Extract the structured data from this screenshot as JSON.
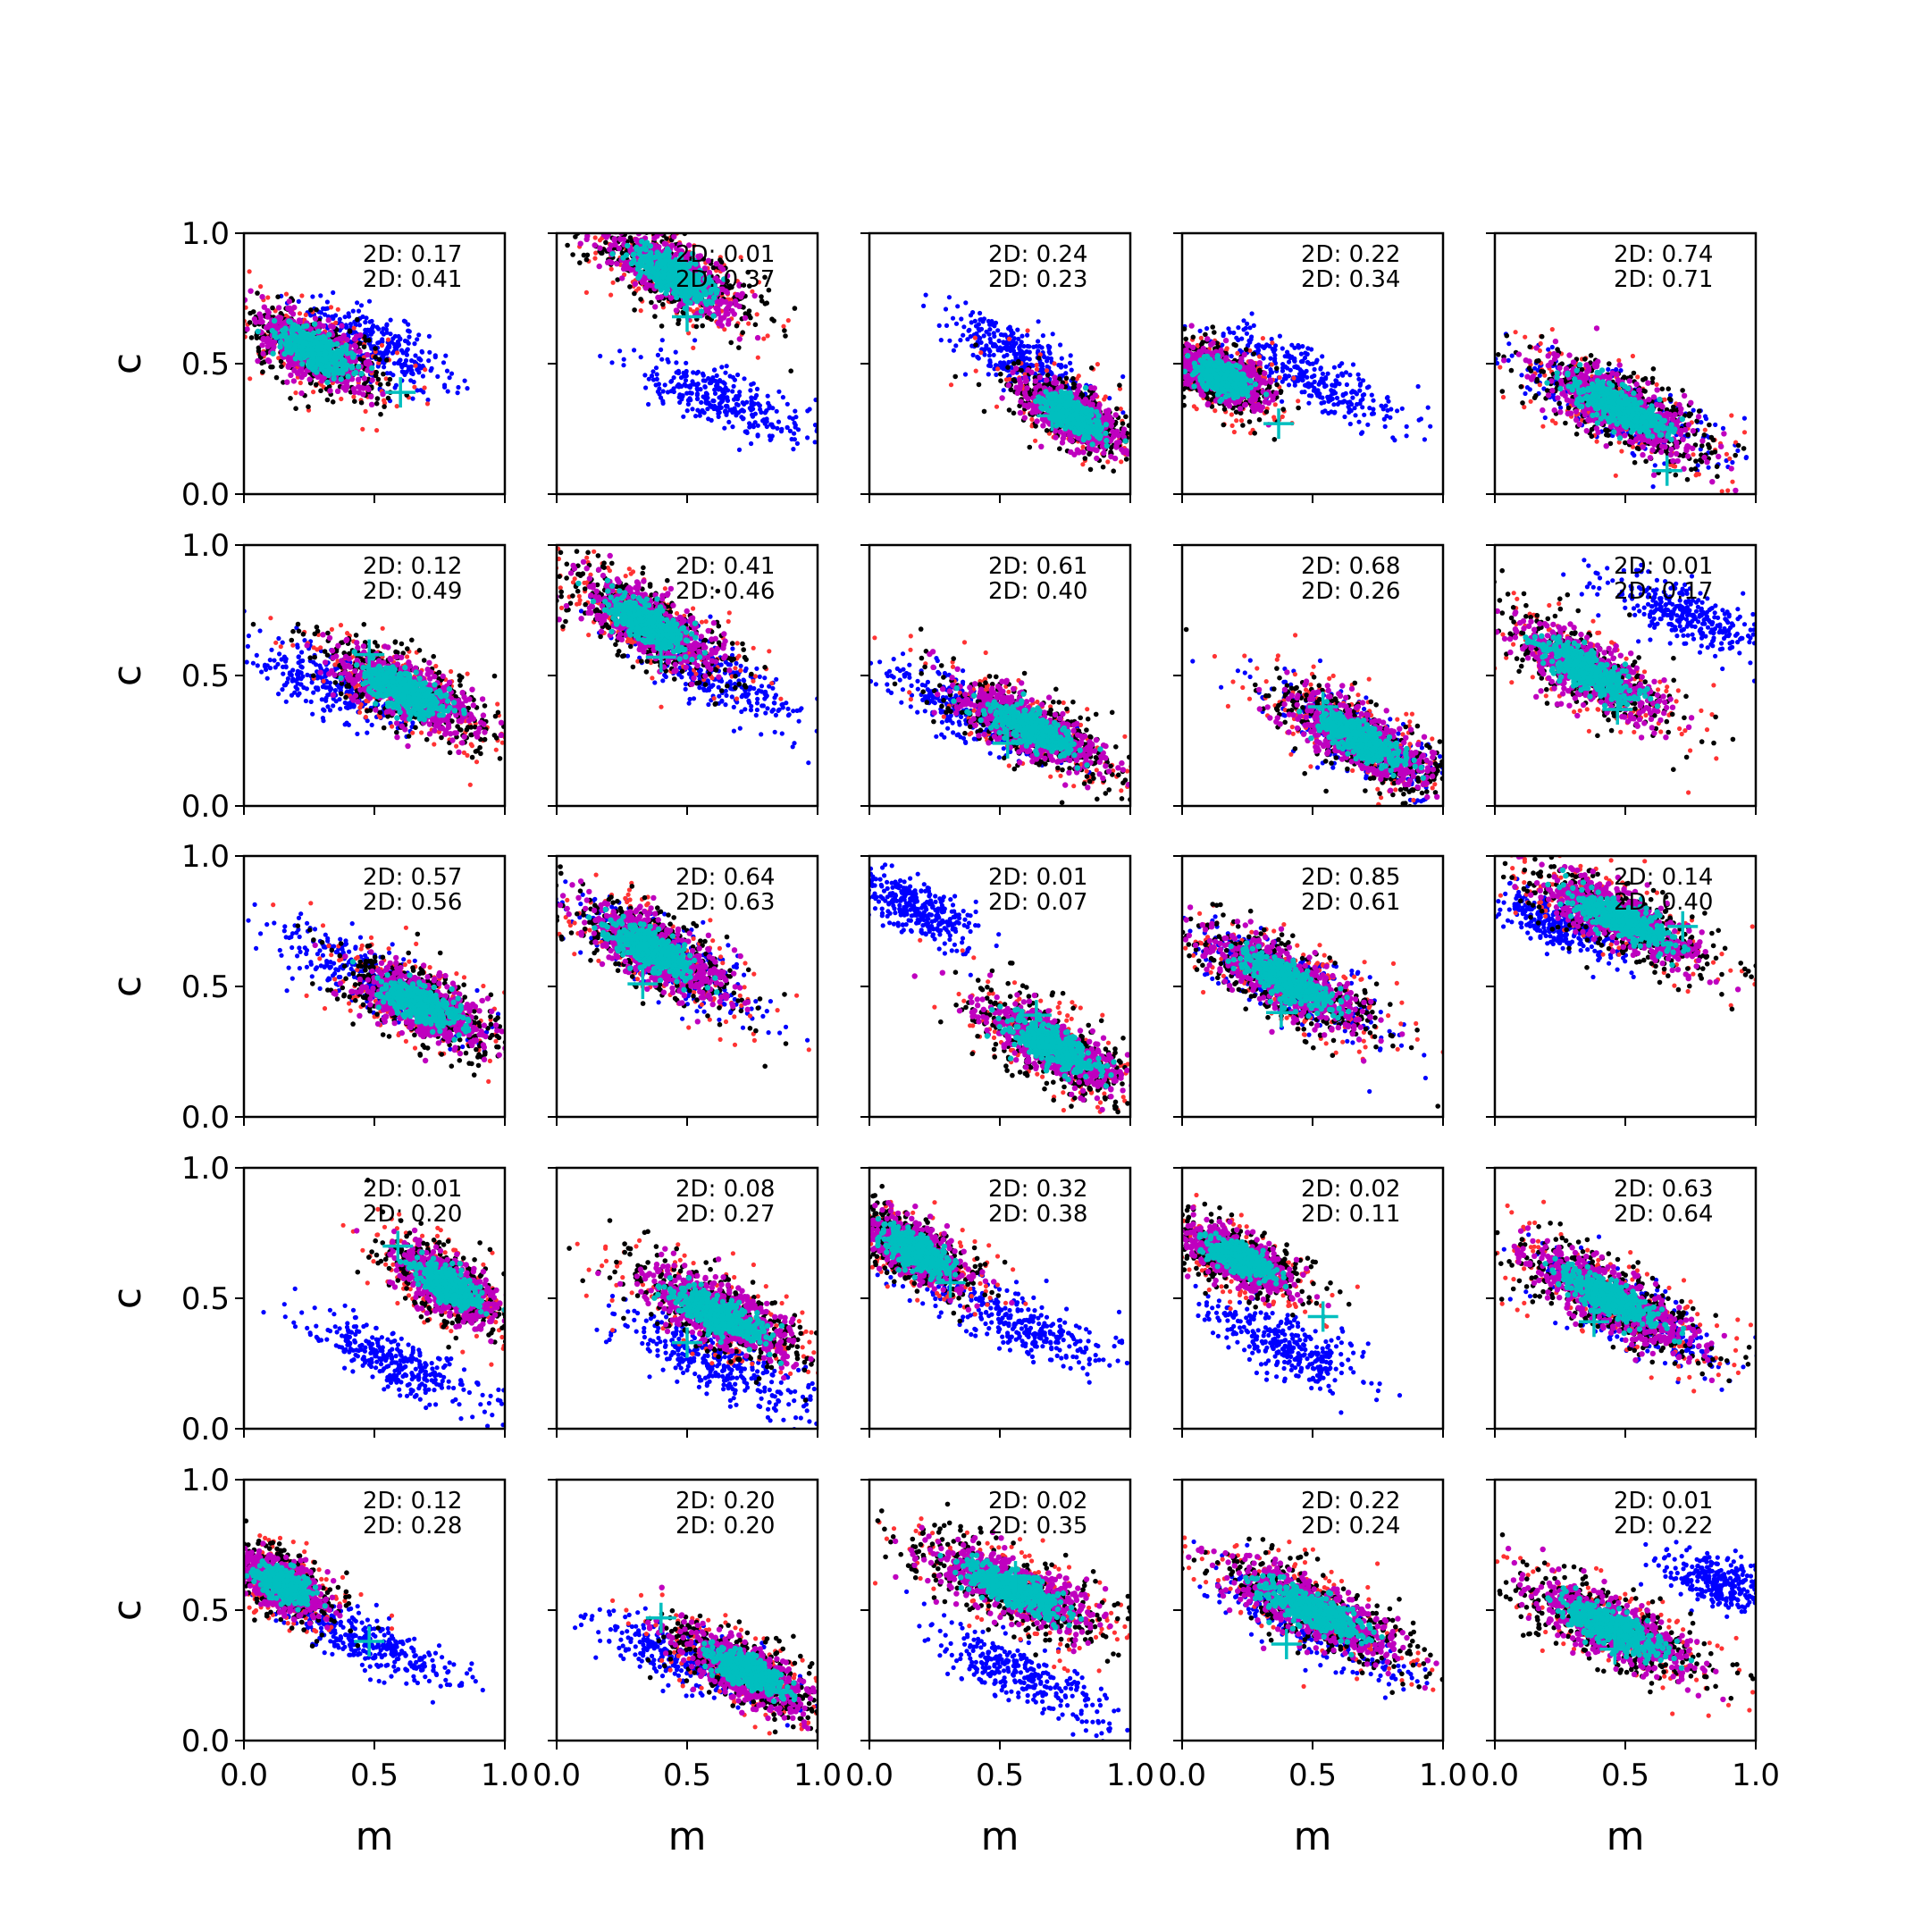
{
  "figure": {
    "xlabel": "m",
    "ylabel": "c",
    "xlim": [
      0,
      1
    ],
    "ylim": [
      0,
      1
    ],
    "xticks": [
      "0.0",
      "0.5",
      "1.0"
    ],
    "yticks": [
      "0.0",
      "0.5",
      "1.0"
    ],
    "annotation_prefix": "2D: "
  },
  "colors": {
    "sample_a": "#ff3333",
    "sample_b": "#0000ff",
    "outer_contour": "#000000",
    "mid_contour": "#bf00bf",
    "core": "#00bfbf",
    "marker": "#00bfbf",
    "axes": "#000000"
  },
  "chart_data": [
    {
      "type": "scatter",
      "d2": [
        "0.17",
        "0.41"
      ],
      "marker": [
        0.6,
        0.39
      ],
      "main": {
        "center": [
          0.27,
          0.55
        ],
        "spread": [
          0.3,
          0.13
        ],
        "angle": -28
      },
      "other": {
        "center": [
          0.5,
          0.57
        ],
        "spread": [
          0.32,
          0.1
        ],
        "angle": -26
      }
    },
    {
      "type": "scatter",
      "d2": [
        "0.01",
        "0.37"
      ],
      "marker": [
        0.5,
        0.68
      ],
      "main": {
        "center": [
          0.45,
          0.84
        ],
        "spread": [
          0.34,
          0.13
        ],
        "angle": -30
      },
      "other": {
        "center": [
          0.63,
          0.37
        ],
        "spread": [
          0.32,
          0.1
        ],
        "angle": -22
      }
    },
    {
      "type": "scatter",
      "d2": [
        "0.24",
        "0.23"
      ],
      "marker": [
        0.7,
        0.3
      ],
      "main": {
        "center": [
          0.78,
          0.3
        ],
        "spread": [
          0.26,
          0.11
        ],
        "angle": -32
      },
      "other": {
        "center": [
          0.58,
          0.52
        ],
        "spread": [
          0.3,
          0.1
        ],
        "angle": -28
      }
    },
    {
      "type": "scatter",
      "d2": [
        "0.22",
        "0.34"
      ],
      "marker": [
        0.37,
        0.27
      ],
      "main": {
        "center": [
          0.15,
          0.45
        ],
        "spread": [
          0.22,
          0.11
        ],
        "angle": -24
      },
      "other": {
        "center": [
          0.48,
          0.45
        ],
        "spread": [
          0.36,
          0.1
        ],
        "angle": -25
      }
    },
    {
      "type": "scatter",
      "d2": [
        "0.74",
        "0.71"
      ],
      "marker": [
        0.66,
        0.09
      ],
      "main": {
        "center": [
          0.48,
          0.33
        ],
        "spread": [
          0.4,
          0.13
        ],
        "angle": -27
      },
      "other": {
        "center": [
          0.48,
          0.33
        ],
        "spread": [
          0.4,
          0.12
        ],
        "angle": -27
      }
    },
    {
      "type": "scatter",
      "d2": [
        "0.12",
        "0.49"
      ],
      "marker": [
        0.48,
        0.58
      ],
      "main": {
        "center": [
          0.62,
          0.44
        ],
        "spread": [
          0.36,
          0.13
        ],
        "angle": -25
      },
      "other": {
        "center": [
          0.35,
          0.46
        ],
        "spread": [
          0.32,
          0.1
        ],
        "angle": -22
      }
    },
    {
      "type": "scatter",
      "d2": [
        "0.41",
        "0.46"
      ],
      "marker": [
        0.4,
        0.57
      ],
      "main": {
        "center": [
          0.35,
          0.7
        ],
        "spread": [
          0.36,
          0.13
        ],
        "angle": -30
      },
      "other": {
        "center": [
          0.58,
          0.52
        ],
        "spread": [
          0.4,
          0.1
        ],
        "angle": -30
      }
    },
    {
      "type": "scatter",
      "d2": [
        "0.61",
        "0.40"
      ],
      "marker": [
        0.53,
        0.24
      ],
      "main": {
        "center": [
          0.62,
          0.3
        ],
        "spread": [
          0.38,
          0.12
        ],
        "angle": -27
      },
      "other": {
        "center": [
          0.4,
          0.36
        ],
        "spread": [
          0.34,
          0.1
        ],
        "angle": -25
      }
    },
    {
      "type": "scatter",
      "d2": [
        "0.68",
        "0.26"
      ],
      "marker": [
        0.54,
        0.38
      ],
      "main": {
        "center": [
          0.68,
          0.26
        ],
        "spread": [
          0.36,
          0.12
        ],
        "angle": -30
      },
      "other": {
        "center": [
          0.68,
          0.26
        ],
        "spread": [
          0.36,
          0.11
        ],
        "angle": -30
      }
    },
    {
      "type": "scatter",
      "d2": [
        "0.01",
        "0.17"
      ],
      "marker": [
        0.47,
        0.37
      ],
      "main": {
        "center": [
          0.35,
          0.52
        ],
        "spread": [
          0.38,
          0.13
        ],
        "angle": -30
      },
      "other": {
        "center": [
          0.72,
          0.73
        ],
        "spread": [
          0.32,
          0.1
        ],
        "angle": -22
      }
    },
    {
      "type": "scatter",
      "d2": [
        "0.57",
        "0.56"
      ],
      "marker": [
        0.6,
        0.47
      ],
      "main": {
        "center": [
          0.68,
          0.43
        ],
        "spread": [
          0.34,
          0.13
        ],
        "angle": -25
      },
      "other": {
        "center": [
          0.5,
          0.52
        ],
        "spread": [
          0.4,
          0.1
        ],
        "angle": -28
      }
    },
    {
      "type": "scatter",
      "d2": [
        "0.64",
        "0.63"
      ],
      "marker": [
        0.33,
        0.51
      ],
      "main": {
        "center": [
          0.37,
          0.64
        ],
        "spread": [
          0.36,
          0.13
        ],
        "angle": -30
      },
      "other": {
        "center": [
          0.4,
          0.62
        ],
        "spread": [
          0.38,
          0.11
        ],
        "angle": -30
      }
    },
    {
      "type": "scatter",
      "d2": [
        "0.01",
        "0.07"
      ],
      "marker": [
        0.64,
        0.39
      ],
      "main": {
        "center": [
          0.7,
          0.27
        ],
        "spread": [
          0.36,
          0.13
        ],
        "angle": -30
      },
      "other": {
        "center": [
          0.18,
          0.8
        ],
        "spread": [
          0.24,
          0.09
        ],
        "angle": -28
      }
    },
    {
      "type": "scatter",
      "d2": [
        "0.85",
        "0.61"
      ],
      "marker": [
        0.38,
        0.4
      ],
      "main": {
        "center": [
          0.4,
          0.52
        ],
        "spread": [
          0.4,
          0.13
        ],
        "angle": -28
      },
      "other": {
        "center": [
          0.4,
          0.52
        ],
        "spread": [
          0.4,
          0.12
        ],
        "angle": -28
      }
    },
    {
      "type": "scatter",
      "d2": [
        "0.14",
        "0.40"
      ],
      "marker": [
        0.72,
        0.73
      ],
      "main": {
        "center": [
          0.48,
          0.76
        ],
        "spread": [
          0.4,
          0.12
        ],
        "angle": -25
      },
      "other": {
        "center": [
          0.25,
          0.74
        ],
        "spread": [
          0.26,
          0.09
        ],
        "angle": -22
      }
    },
    {
      "type": "scatter",
      "d2": [
        "0.01",
        "0.20"
      ],
      "marker": [
        0.59,
        0.7
      ],
      "main": {
        "center": [
          0.78,
          0.55
        ],
        "spread": [
          0.28,
          0.12
        ],
        "angle": -33
      },
      "other": {
        "center": [
          0.58,
          0.26
        ],
        "spread": [
          0.36,
          0.1
        ],
        "angle": -25
      }
    },
    {
      "type": "scatter",
      "d2": [
        "0.08",
        "0.27"
      ],
      "marker": [
        0.5,
        0.33
      ],
      "main": {
        "center": [
          0.62,
          0.44
        ],
        "spread": [
          0.38,
          0.13
        ],
        "angle": -27
      },
      "other": {
        "center": [
          0.6,
          0.26
        ],
        "spread": [
          0.38,
          0.1
        ],
        "angle": -24
      }
    },
    {
      "type": "scatter",
      "d2": [
        "0.32",
        "0.38"
      ],
      "marker": [
        0.31,
        0.56
      ],
      "main": {
        "center": [
          0.18,
          0.68
        ],
        "spread": [
          0.28,
          0.11
        ],
        "angle": -30
      },
      "other": {
        "center": [
          0.58,
          0.4
        ],
        "spread": [
          0.38,
          0.1
        ],
        "angle": -22
      }
    },
    {
      "type": "scatter",
      "d2": [
        "0.02",
        "0.11"
      ],
      "marker": [
        0.54,
        0.43
      ],
      "main": {
        "center": [
          0.22,
          0.65
        ],
        "spread": [
          0.28,
          0.11
        ],
        "angle": -26
      },
      "other": {
        "center": [
          0.4,
          0.32
        ],
        "spread": [
          0.32,
          0.1
        ],
        "angle": -24
      }
    },
    {
      "type": "scatter",
      "d2": [
        "0.63",
        "0.64"
      ],
      "marker": [
        0.38,
        0.41
      ],
      "main": {
        "center": [
          0.44,
          0.5
        ],
        "spread": [
          0.42,
          0.13
        ],
        "angle": -28
      },
      "other": {
        "center": [
          0.55,
          0.43
        ],
        "spread": [
          0.4,
          0.11
        ],
        "angle": -28
      }
    },
    {
      "type": "scatter",
      "d2": [
        "0.12",
        "0.28"
      ],
      "marker": [
        0.48,
        0.38
      ],
      "main": {
        "center": [
          0.15,
          0.6
        ],
        "spread": [
          0.22,
          0.11
        ],
        "angle": -28
      },
      "other": {
        "center": [
          0.48,
          0.37
        ],
        "spread": [
          0.36,
          0.09
        ],
        "angle": -24
      }
    },
    {
      "type": "scatter",
      "d2": [
        "0.20",
        "0.20"
      ],
      "marker": [
        0.4,
        0.47
      ],
      "main": {
        "center": [
          0.72,
          0.27
        ],
        "spread": [
          0.34,
          0.12
        ],
        "angle": -28
      },
      "other": {
        "center": [
          0.5,
          0.32
        ],
        "spread": [
          0.38,
          0.1
        ],
        "angle": -20
      }
    },
    {
      "type": "scatter",
      "d2": [
        "0.02",
        "0.35"
      ],
      "marker": [
        0.56,
        0.63
      ],
      "main": {
        "center": [
          0.55,
          0.58
        ],
        "spread": [
          0.42,
          0.13
        ],
        "angle": -24
      },
      "other": {
        "center": [
          0.58,
          0.26
        ],
        "spread": [
          0.34,
          0.1
        ],
        "angle": -25
      }
    },
    {
      "type": "scatter",
      "d2": [
        "0.22",
        "0.24"
      ],
      "marker": [
        0.4,
        0.37
      ],
      "main": {
        "center": [
          0.5,
          0.5
        ],
        "spread": [
          0.42,
          0.13
        ],
        "angle": -25
      },
      "other": {
        "center": [
          0.5,
          0.45
        ],
        "spread": [
          0.42,
          0.11
        ],
        "angle": -25
      }
    },
    {
      "type": "scatter",
      "d2": [
        "0.01",
        "0.22"
      ],
      "marker": [
        0.46,
        0.35
      ],
      "main": {
        "center": [
          0.45,
          0.43
        ],
        "spread": [
          0.42,
          0.13
        ],
        "angle": -25
      },
      "other": {
        "center": [
          0.88,
          0.6
        ],
        "spread": [
          0.24,
          0.09
        ],
        "angle": -18
      }
    }
  ]
}
